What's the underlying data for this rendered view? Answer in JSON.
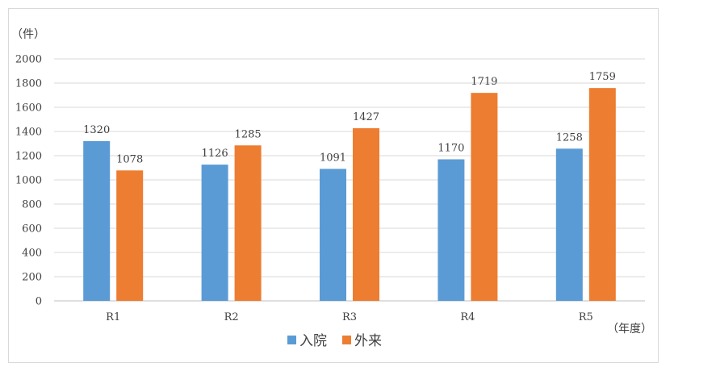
{
  "chart_data": {
    "type": "bar",
    "y_unit_label": "（件）",
    "x_unit_label": "（年度）",
    "categories": [
      "R1",
      "R2",
      "R3",
      "R4",
      "R5"
    ],
    "series": [
      {
        "name": "入院",
        "color": "#5b9bd5",
        "values": [
          1320,
          1126,
          1091,
          1170,
          1258
        ]
      },
      {
        "name": "外来",
        "color": "#ed7d31",
        "values": [
          1078,
          1285,
          1427,
          1719,
          1759
        ]
      }
    ],
    "ylim": [
      0,
      2000
    ],
    "yticks": [
      "0",
      "200",
      "400",
      "600",
      "800",
      "1000",
      "1200",
      "1400",
      "1600",
      "1800",
      "2000"
    ],
    "grid": true,
    "legend_position": "bottom"
  }
}
